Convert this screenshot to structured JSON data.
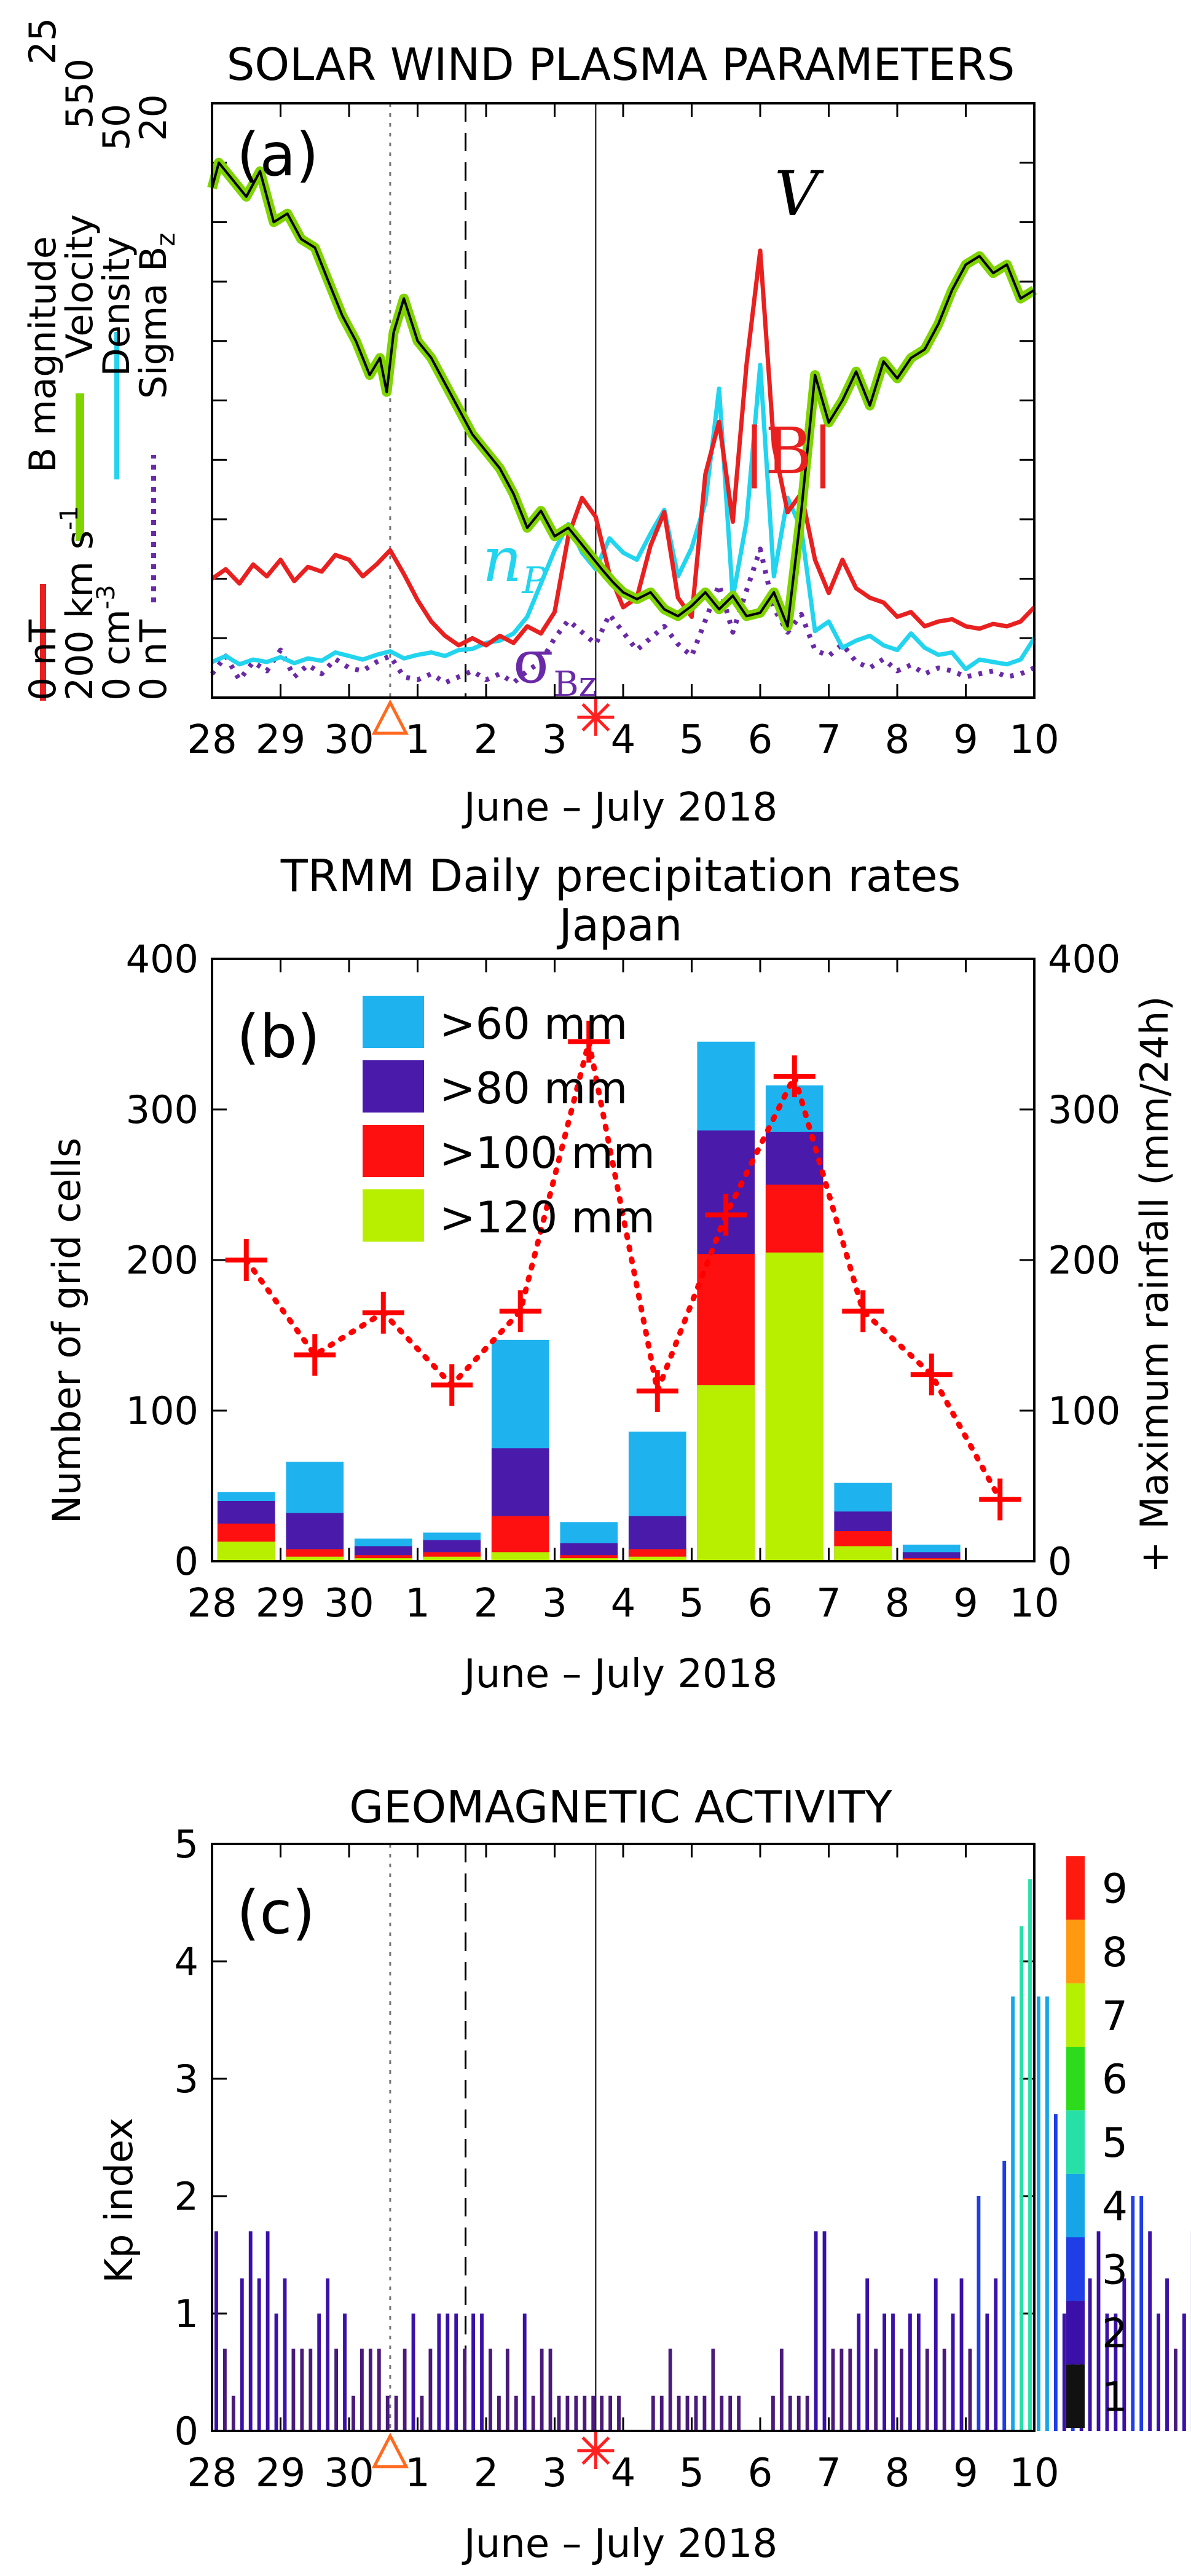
{
  "colors": {
    "velocity": "#7fd400",
    "velocity_line": "#000000",
    "bmag": "#e82020",
    "density": "#22d4ee",
    "sigma": "#6a2aa8",
    "gt60": "#1eb3ee",
    "gt80": "#4a1aaa",
    "gt100": "#ff1010",
    "gt120": "#b8ee00",
    "maxrain": "#ff0000",
    "triangle": "#ff6a20",
    "star": "#ff2020",
    "kp": [
      "#111111",
      "#4a1a7a",
      "#3a10a8",
      "#1f3ee6",
      "#16a6e8",
      "#26e0a8",
      "#2cdc1c",
      "#b4f000",
      "#ff9a10",
      "#ff1a10"
    ]
  },
  "days": [
    "28",
    "29",
    "30",
    "1",
    "2",
    "3",
    "4",
    "5",
    "6",
    "7",
    "8",
    "9",
    "10"
  ],
  "xlabel": "June – July 2018",
  "panel_a": {
    "title": "SOLAR WIND PLASMA PARAMETERS",
    "tag": "(a)",
    "ylabels": [
      {
        "line": "B magnitude",
        "top": "25",
        "bottom": "0 nT"
      },
      {
        "line": "Velocity",
        "top": "550",
        "bottom": "200 km s",
        "sup": "-1"
      },
      {
        "line": "Density",
        "top": "50",
        "bottom": "0 cm",
        "sup": "-3"
      },
      {
        "line": "Sigma B",
        "sub": "z",
        "top": "20",
        "bottom": "0 nT"
      }
    ],
    "annotations": {
      "V": "V",
      "B": "|B|",
      "np": "n",
      "np_sub": "P",
      "sigma": "σ",
      "sigma_sub": "Bz"
    },
    "event_days": {
      "dotted": 2.6,
      "dashed": 3.7,
      "solid": 5.6
    },
    "series": {
      "velocity": {
        "scale": [
          200,
          550
        ],
        "t": [
          0,
          0.1,
          0.3,
          0.5,
          0.7,
          0.9,
          1.1,
          1.3,
          1.5,
          1.7,
          1.9,
          2.1,
          2.3,
          2.45,
          2.55,
          2.65,
          2.8,
          3.0,
          3.2,
          3.4,
          3.6,
          3.8,
          4.0,
          4.2,
          4.4,
          4.6,
          4.8,
          5.0,
          5.2,
          5.4,
          5.6,
          5.7,
          5.85,
          6.0,
          6.2,
          6.4,
          6.6,
          6.8,
          7.0,
          7.2,
          7.4,
          7.6,
          7.8,
          8.0,
          8.2,
          8.4,
          8.6,
          8.8,
          9.0,
          9.2,
          9.4,
          9.6,
          9.8,
          10.0,
          10.2,
          10.4,
          10.6,
          10.8,
          11.0,
          11.2,
          11.4,
          11.6,
          11.8,
          12.0
        ],
        "v": [
          500,
          515,
          505,
          495,
          510,
          480,
          485,
          470,
          465,
          445,
          425,
          410,
          390,
          400,
          380,
          415,
          435,
          410,
          400,
          385,
          370,
          355,
          345,
          335,
          320,
          300,
          310,
          295,
          300,
          290,
          280,
          275,
          268,
          262,
          258,
          262,
          252,
          248,
          254,
          262,
          252,
          260,
          248,
          250,
          262,
          242,
          310,
          390,
          362,
          375,
          392,
          372,
          398,
          388,
          400,
          405,
          420,
          440,
          455,
          460,
          450,
          455,
          435,
          440
        ]
      },
      "bmag": {
        "scale": [
          0,
          25
        ],
        "t": [
          0,
          0.2,
          0.4,
          0.6,
          0.8,
          1.0,
          1.2,
          1.4,
          1.6,
          1.8,
          2.0,
          2.2,
          2.4,
          2.6,
          2.8,
          3.0,
          3.2,
          3.4,
          3.6,
          3.8,
          4.0,
          4.2,
          4.4,
          4.6,
          4.8,
          5.0,
          5.2,
          5.4,
          5.6,
          5.8,
          6.0,
          6.2,
          6.4,
          6.6,
          6.8,
          7.0,
          7.2,
          7.4,
          7.6,
          7.8,
          8.0,
          8.2,
          8.4,
          8.6,
          8.8,
          9.0,
          9.2,
          9.4,
          9.6,
          9.8,
          10.0,
          10.2,
          10.4,
          10.6,
          10.8,
          11.0,
          11.2,
          11.4,
          11.6,
          11.8,
          12.0
        ],
        "v": [
          5,
          5.4,
          4.8,
          5.6,
          5.1,
          5.8,
          4.9,
          5.5,
          5.3,
          6.0,
          5.8,
          5.1,
          5.6,
          6.2,
          5.2,
          4.1,
          3.2,
          2.6,
          2.2,
          2.5,
          2.2,
          2.6,
          2.3,
          3.0,
          2.7,
          3.6,
          6.8,
          8.4,
          7.6,
          5.2,
          3.8,
          4.2,
          6.4,
          7.8,
          4.2,
          3.4,
          9.4,
          11.6,
          7.4,
          14.0,
          18.8,
          10.6,
          7.8,
          8.6,
          5.8,
          4.4,
          5.8,
          4.6,
          4.2,
          4.0,
          3.4,
          3.6,
          3.0,
          3.2,
          3.3,
          3.0,
          2.9,
          3.1,
          3.0,
          3.2,
          3.8
        ]
      },
      "density": {
        "scale": [
          0,
          50
        ],
        "t": [
          0,
          0.2,
          0.4,
          0.6,
          0.8,
          1.0,
          1.2,
          1.4,
          1.6,
          1.8,
          2.0,
          2.2,
          2.4,
          2.6,
          2.8,
          3.0,
          3.2,
          3.4,
          3.6,
          3.8,
          4.0,
          4.2,
          4.4,
          4.6,
          4.8,
          5.0,
          5.2,
          5.4,
          5.6,
          5.8,
          6.0,
          6.2,
          6.4,
          6.6,
          6.8,
          7.0,
          7.2,
          7.4,
          7.6,
          7.8,
          8.0,
          8.2,
          8.4,
          8.6,
          8.8,
          9.0,
          9.2,
          9.4,
          9.6,
          9.8,
          10.0,
          10.2,
          10.4,
          10.6,
          10.8,
          11.0,
          11.2,
          11.4,
          11.6,
          11.8,
          12.0
        ],
        "v": [
          3,
          3.5,
          2.8,
          3.2,
          3.0,
          3.4,
          2.9,
          3.3,
          3.1,
          3.8,
          3.5,
          3.2,
          3.6,
          3.9,
          3.3,
          3.6,
          3.8,
          3.5,
          4.0,
          4.1,
          4.6,
          4.8,
          5.4,
          6.8,
          9.6,
          12.4,
          14.6,
          12.2,
          10.8,
          13.4,
          12.2,
          11.6,
          13.8,
          15.8,
          10.2,
          12.6,
          16.4,
          26.0,
          8.4,
          14.8,
          28.0,
          10.2,
          16.8,
          14.2,
          5.6,
          6.4,
          4.2,
          4.8,
          5.2,
          4.4,
          4.0,
          5.4,
          4.2,
          3.6,
          3.8,
          2.4,
          3.2,
          3.0,
          2.8,
          3.2,
          5.0
        ]
      },
      "sigma": {
        "scale": [
          0,
          20
        ],
        "t": [
          0,
          0.2,
          0.4,
          0.6,
          0.8,
          1.0,
          1.2,
          1.4,
          1.6,
          1.8,
          2.0,
          2.2,
          2.4,
          2.6,
          2.8,
          3.0,
          3.2,
          3.4,
          3.6,
          3.8,
          4.0,
          4.2,
          4.4,
          4.6,
          4.8,
          5.0,
          5.2,
          5.4,
          5.6,
          5.8,
          6.0,
          6.2,
          6.4,
          6.6,
          6.8,
          7.0,
          7.2,
          7.4,
          7.6,
          7.8,
          8.0,
          8.2,
          8.4,
          8.6,
          8.8,
          9.0,
          9.2,
          9.4,
          9.6,
          9.8,
          10.0,
          10.2,
          10.4,
          10.6,
          10.8,
          11.0,
          11.2,
          11.4,
          11.6,
          11.8,
          12.0
        ],
        "v": [
          0.8,
          1.4,
          0.6,
          1.2,
          0.9,
          1.6,
          0.7,
          1.1,
          0.8,
          1.3,
          1.0,
          0.9,
          1.2,
          1.4,
          0.7,
          0.6,
          0.8,
          0.5,
          0.7,
          0.9,
          0.6,
          0.8,
          0.5,
          0.9,
          1.2,
          2.0,
          2.6,
          2.2,
          1.8,
          2.8,
          2.2,
          1.6,
          2.0,
          2.4,
          1.8,
          1.4,
          2.6,
          3.8,
          2.2,
          3.6,
          5.0,
          3.0,
          2.2,
          2.8,
          1.6,
          1.4,
          1.8,
          1.2,
          1.0,
          1.3,
          0.9,
          1.1,
          0.8,
          1.0,
          0.9,
          0.7,
          0.8,
          0.9,
          0.7,
          0.8,
          1.0
        ]
      }
    }
  },
  "panel_b": {
    "title": "TRMM Daily precipitation rates",
    "subtitle": "Japan",
    "tag": "(b)",
    "ylabel_left": "Number of grid cells",
    "ylabel_right": "+ Maximum rainfall (mm/24h)",
    "legend": [
      ">60 mm",
      ">80 mm",
      ">100 mm",
      ">120 mm"
    ]
  },
  "panel_c": {
    "title": "GEOMAGNETIC ACTIVITY",
    "tag": "(c)",
    "ylabel": "Kp index",
    "colorbar_labels": [
      "1",
      "2",
      "3",
      "4",
      "5",
      "6",
      "7",
      "8",
      "9"
    ]
  },
  "chart_data": [
    {
      "type": "line",
      "title": "SOLAR WIND PLASMA PARAMETERS",
      "x": [
        "28",
        "29",
        "30",
        "1",
        "2",
        "3",
        "4",
        "5",
        "6",
        "7",
        "8",
        "9",
        "10"
      ],
      "xlabel": "June – July 2018",
      "series": [
        {
          "name": "Velocity (km/s)",
          "range": [
            200,
            550
          ]
        },
        {
          "name": "B magnitude (nT)",
          "range": [
            0,
            25
          ]
        },
        {
          "name": "Density (cm^-3)",
          "range": [
            0,
            50
          ]
        },
        {
          "name": "Sigma Bz (nT)",
          "range": [
            0,
            20
          ]
        }
      ]
    },
    {
      "type": "bar",
      "title": "TRMM Daily precipitation rates — Japan",
      "categories": [
        "28",
        "29",
        "30",
        "1",
        "2",
        "3",
        "4",
        "5",
        "6",
        "7",
        "8",
        "9"
      ],
      "ylim": [
        0,
        400
      ],
      "ylabel": "Number of grid cells",
      "series": [
        {
          "name": ">60 mm",
          "values": [
            46,
            66,
            15,
            19,
            147,
            26,
            86,
            345,
            316,
            52,
            11,
            0
          ]
        },
        {
          "name": ">80 mm",
          "values": [
            40,
            32,
            10,
            14,
            75,
            12,
            30,
            286,
            285,
            33,
            6,
            0
          ]
        },
        {
          "name": ">100 mm",
          "values": [
            25,
            8,
            4,
            6,
            30,
            4,
            8,
            204,
            250,
            20,
            2,
            0
          ]
        },
        {
          "name": ">120 mm",
          "values": [
            13,
            3,
            2,
            3,
            6,
            2,
            3,
            117,
            205,
            10,
            1,
            0
          ]
        }
      ],
      "line_series": {
        "name": "Maximum rainfall (mm/24h)",
        "values": [
          200,
          137,
          165,
          117,
          166,
          345,
          113,
          230,
          322,
          166,
          124,
          41
        ]
      }
    },
    {
      "type": "bar",
      "title": "GEOMAGNETIC ACTIVITY",
      "ylabel": "Kp index",
      "ylim": [
        0,
        5
      ],
      "x_start_day": "28",
      "interval_hours": 3,
      "values": [
        1.7,
        0.7,
        0.3,
        1.3,
        1.7,
        1.3,
        1.7,
        1.0,
        1.3,
        0.7,
        0.7,
        0.7,
        1.0,
        1.3,
        0.7,
        1.0,
        0.3,
        0.7,
        0.7,
        0.7,
        0.3,
        0.3,
        0.7,
        1.0,
        0.3,
        0.7,
        1.0,
        1.0,
        1.0,
        0.7,
        1.0,
        1.0,
        0.7,
        0.3,
        0.7,
        0.3,
        1.0,
        0.3,
        0.7,
        0.7,
        0.3,
        0.3,
        0.3,
        0.3,
        0.3,
        0.3,
        0.3,
        0.3,
        0,
        0,
        0,
        0.3,
        0.3,
        0.7,
        0.3,
        0.3,
        0.3,
        0.3,
        0.7,
        0.3,
        0.3,
        0.3,
        0,
        0,
        0,
        0.3,
        0.7,
        0.3,
        0.3,
        0.3,
        1.7,
        1.7,
        0.7,
        0.7,
        0.7,
        1.0,
        1.3,
        0.7,
        1.0,
        1.0,
        0.7,
        1.0,
        1.0,
        0.7,
        1.3,
        0.7,
        1.0,
        1.3,
        0.7,
        2.0,
        1.0,
        1.3,
        2.3,
        3.7,
        4.3,
        4.7,
        3.7,
        3.7,
        2.7,
        1.0,
        2.0,
        1.0,
        1.3,
        1.7,
        1.0,
        1.0,
        1.3,
        2.0,
        2.0,
        1.7,
        1.0,
        1.3,
        0.7,
        1.0,
        1.7,
        2.0,
        1.3,
        1.0,
        1.3,
        1.0,
        0.7,
        0.7,
        1.0,
        0.7,
        1.0,
        0.3,
        0.7,
        0.7,
        0.7,
        0.3,
        0.7,
        0.3,
        0.3,
        0.3,
        0.7,
        0.3,
        0.3,
        0.3,
        0,
        0,
        0,
        0,
        0,
        0.3,
        0.3,
        0.3
      ]
    }
  ]
}
